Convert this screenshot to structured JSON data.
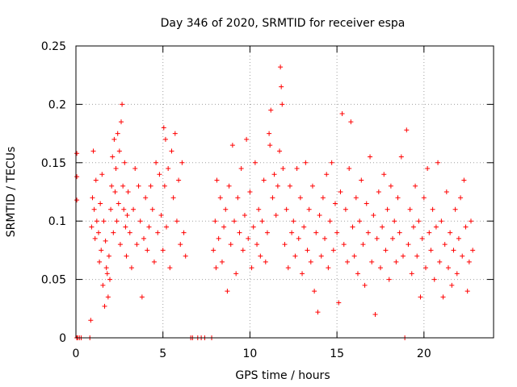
{
  "chart_data": {
    "type": "scatter",
    "title": "Day 346 of 2020, SRMTID for receiver espa",
    "xlabel": "GPS time / hours",
    "ylabel": "SRMTID / TECUs",
    "xlim": [
      0,
      24
    ],
    "ylim": [
      0,
      0.25
    ],
    "xticks": [
      0,
      5,
      10,
      15,
      20
    ],
    "xtick_labels": [
      "0",
      "5",
      "10",
      "15",
      "20"
    ],
    "yticks": [
      0,
      0.05,
      0.1,
      0.15,
      0.2,
      0.25
    ],
    "ytick_labels": [
      "0",
      "0.05",
      "0.1",
      "0.15",
      "0.2",
      "0.25"
    ],
    "grid": true,
    "marker": "+",
    "series": [
      {
        "name": "SRMTID",
        "color": "#ff0000",
        "points": [
          [
            0.05,
            0.158
          ],
          [
            0.05,
            0.138
          ],
          [
            0.05,
            0.118
          ],
          [
            0.05,
            0.0
          ],
          [
            0.1,
            0.0
          ],
          [
            0.2,
            0.0
          ],
          [
            0.3,
            0.0
          ],
          [
            0.8,
            0.0
          ],
          [
            0.85,
            0.015
          ],
          [
            0.9,
            0.095
          ],
          [
            0.95,
            0.12
          ],
          [
            1.0,
            0.16
          ],
          [
            1.05,
            0.11
          ],
          [
            1.1,
            0.085
          ],
          [
            1.15,
            0.135
          ],
          [
            1.2,
            0.1
          ],
          [
            1.3,
            0.09
          ],
          [
            1.35,
            0.065
          ],
          [
            1.4,
            0.115
          ],
          [
            1.45,
            0.075
          ],
          [
            1.5,
            0.14
          ],
          [
            1.55,
            0.045
          ],
          [
            1.6,
            0.1
          ],
          [
            1.65,
            0.027
          ],
          [
            1.7,
            0.083
          ],
          [
            1.75,
            0.06
          ],
          [
            1.8,
            0.055
          ],
          [
            1.85,
            0.035
          ],
          [
            1.9,
            0.07
          ],
          [
            1.95,
            0.05
          ],
          [
            2.0,
            0.11
          ],
          [
            2.05,
            0.13
          ],
          [
            2.1,
            0.155
          ],
          [
            2.15,
            0.09
          ],
          [
            2.2,
            0.17
          ],
          [
            2.25,
            0.125
          ],
          [
            2.3,
            0.145
          ],
          [
            2.35,
            0.1
          ],
          [
            2.4,
            0.175
          ],
          [
            2.45,
            0.115
          ],
          [
            2.5,
            0.16
          ],
          [
            2.55,
            0.08
          ],
          [
            2.6,
            0.185
          ],
          [
            2.65,
            0.2
          ],
          [
            2.7,
            0.13
          ],
          [
            2.75,
            0.11
          ],
          [
            2.8,
            0.15
          ],
          [
            2.85,
            0.095
          ],
          [
            2.9,
            0.07
          ],
          [
            2.95,
            0.105
          ],
          [
            3.0,
            0.125
          ],
          [
            3.1,
            0.09
          ],
          [
            3.2,
            0.06
          ],
          [
            3.3,
            0.11
          ],
          [
            3.4,
            0.145
          ],
          [
            3.5,
            0.08
          ],
          [
            3.6,
            0.13
          ],
          [
            3.7,
            0.1
          ],
          [
            3.8,
            0.035
          ],
          [
            3.9,
            0.085
          ],
          [
            4.0,
            0.12
          ],
          [
            4.1,
            0.075
          ],
          [
            4.2,
            0.095
          ],
          [
            4.3,
            0.13
          ],
          [
            4.4,
            0.11
          ],
          [
            4.5,
            0.065
          ],
          [
            4.6,
            0.15
          ],
          [
            4.7,
            0.09
          ],
          [
            4.8,
            0.14
          ],
          [
            4.9,
            0.105
          ],
          [
            5.0,
            0.075
          ],
          [
            5.05,
            0.18
          ],
          [
            5.1,
            0.13
          ],
          [
            5.15,
            0.17
          ],
          [
            5.2,
            0.095
          ],
          [
            5.3,
            0.145
          ],
          [
            5.4,
            0.06
          ],
          [
            5.5,
            0.16
          ],
          [
            5.6,
            0.12
          ],
          [
            5.7,
            0.175
          ],
          [
            5.8,
            0.1
          ],
          [
            5.9,
            0.135
          ],
          [
            6.0,
            0.08
          ],
          [
            6.1,
            0.15
          ],
          [
            6.2,
            0.09
          ],
          [
            6.3,
            0.07
          ],
          [
            6.6,
            0.0
          ],
          [
            6.7,
            0.0
          ],
          [
            7.0,
            0.0
          ],
          [
            7.2,
            0.0
          ],
          [
            7.4,
            0.0
          ],
          [
            7.8,
            0.0
          ],
          [
            7.9,
            0.075
          ],
          [
            8.0,
            0.1
          ],
          [
            8.05,
            0.06
          ],
          [
            8.1,
            0.135
          ],
          [
            8.2,
            0.085
          ],
          [
            8.3,
            0.12
          ],
          [
            8.4,
            0.065
          ],
          [
            8.5,
            0.095
          ],
          [
            8.6,
            0.11
          ],
          [
            8.7,
            0.04
          ],
          [
            8.8,
            0.13
          ],
          [
            8.9,
            0.08
          ],
          [
            9.0,
            0.165
          ],
          [
            9.1,
            0.1
          ],
          [
            9.2,
            0.055
          ],
          [
            9.3,
            0.12
          ],
          [
            9.4,
            0.09
          ],
          [
            9.5,
            0.145
          ],
          [
            9.6,
            0.075
          ],
          [
            9.7,
            0.105
          ],
          [
            9.8,
            0.17
          ],
          [
            9.9,
            0.085
          ],
          [
            10.0,
            0.125
          ],
          [
            10.1,
            0.06
          ],
          [
            10.2,
            0.095
          ],
          [
            10.3,
            0.15
          ],
          [
            10.4,
            0.08
          ],
          [
            10.5,
            0.11
          ],
          [
            10.6,
            0.07
          ],
          [
            10.7,
            0.1
          ],
          [
            10.8,
            0.135
          ],
          [
            10.9,
            0.065
          ],
          [
            11.0,
            0.09
          ],
          [
            11.1,
            0.175
          ],
          [
            11.15,
            0.165
          ],
          [
            11.2,
            0.195
          ],
          [
            11.3,
            0.12
          ],
          [
            11.4,
            0.14
          ],
          [
            11.5,
            0.105
          ],
          [
            11.6,
            0.13
          ],
          [
            11.7,
            0.16
          ],
          [
            11.75,
            0.232
          ],
          [
            11.8,
            0.215
          ],
          [
            11.85,
            0.2
          ],
          [
            11.9,
            0.145
          ],
          [
            12.0,
            0.08
          ],
          [
            12.1,
            0.11
          ],
          [
            12.2,
            0.06
          ],
          [
            12.3,
            0.13
          ],
          [
            12.4,
            0.09
          ],
          [
            12.5,
            0.1
          ],
          [
            12.6,
            0.07
          ],
          [
            12.7,
            0.145
          ],
          [
            12.8,
            0.085
          ],
          [
            12.9,
            0.12
          ],
          [
            13.0,
            0.055
          ],
          [
            13.1,
            0.095
          ],
          [
            13.2,
            0.15
          ],
          [
            13.3,
            0.075
          ],
          [
            13.4,
            0.11
          ],
          [
            13.5,
            0.065
          ],
          [
            13.6,
            0.13
          ],
          [
            13.7,
            0.04
          ],
          [
            13.8,
            0.09
          ],
          [
            13.9,
            0.022
          ],
          [
            14.0,
            0.105
          ],
          [
            14.1,
            0.07
          ],
          [
            14.2,
            0.12
          ],
          [
            14.3,
            0.085
          ],
          [
            14.4,
            0.14
          ],
          [
            14.5,
            0.06
          ],
          [
            14.6,
            0.1
          ],
          [
            14.7,
            0.15
          ],
          [
            14.8,
            0.075
          ],
          [
            14.9,
            0.115
          ],
          [
            15.0,
            0.09
          ],
          [
            15.1,
            0.03
          ],
          [
            15.2,
            0.125
          ],
          [
            15.3,
            0.192
          ],
          [
            15.4,
            0.08
          ],
          [
            15.5,
            0.11
          ],
          [
            15.6,
            0.065
          ],
          [
            15.7,
            0.145
          ],
          [
            15.8,
            0.185
          ],
          [
            15.9,
            0.095
          ],
          [
            16.0,
            0.07
          ],
          [
            16.1,
            0.12
          ],
          [
            16.2,
            0.055
          ],
          [
            16.3,
            0.1
          ],
          [
            16.4,
            0.135
          ],
          [
            16.5,
            0.08
          ],
          [
            16.6,
            0.045
          ],
          [
            16.7,
            0.115
          ],
          [
            16.8,
            0.09
          ],
          [
            16.9,
            0.155
          ],
          [
            17.0,
            0.065
          ],
          [
            17.1,
            0.105
          ],
          [
            17.2,
            0.02
          ],
          [
            17.3,
            0.085
          ],
          [
            17.4,
            0.125
          ],
          [
            17.5,
            0.06
          ],
          [
            17.6,
            0.095
          ],
          [
            17.7,
            0.14
          ],
          [
            17.8,
            0.075
          ],
          [
            17.9,
            0.11
          ],
          [
            18.0,
            0.05
          ],
          [
            18.1,
            0.13
          ],
          [
            18.2,
            0.085
          ],
          [
            18.3,
            0.1
          ],
          [
            18.4,
            0.065
          ],
          [
            18.5,
            0.12
          ],
          [
            18.6,
            0.09
          ],
          [
            18.7,
            0.155
          ],
          [
            18.8,
            0.07
          ],
          [
            18.9,
            0.0
          ],
          [
            19.0,
            0.178
          ],
          [
            19.1,
            0.08
          ],
          [
            19.2,
            0.11
          ],
          [
            19.3,
            0.055
          ],
          [
            19.4,
            0.095
          ],
          [
            19.5,
            0.13
          ],
          [
            19.6,
            0.07
          ],
          [
            19.7,
            0.1
          ],
          [
            19.8,
            0.035
          ],
          [
            19.9,
            0.085
          ],
          [
            20.0,
            0.12
          ],
          [
            20.1,
            0.06
          ],
          [
            20.2,
            0.145
          ],
          [
            20.3,
            0.09
          ],
          [
            20.4,
            0.075
          ],
          [
            20.5,
            0.11
          ],
          [
            20.6,
            0.05
          ],
          [
            20.7,
            0.095
          ],
          [
            20.8,
            0.15
          ],
          [
            20.9,
            0.065
          ],
          [
            21.0,
            0.1
          ],
          [
            21.1,
            0.035
          ],
          [
            21.2,
            0.08
          ],
          [
            21.3,
            0.125
          ],
          [
            21.4,
            0.06
          ],
          [
            21.5,
            0.09
          ],
          [
            21.6,
            0.045
          ],
          [
            21.7,
            0.075
          ],
          [
            21.8,
            0.11
          ],
          [
            21.9,
            0.055
          ],
          [
            22.0,
            0.085
          ],
          [
            22.1,
            0.12
          ],
          [
            22.2,
            0.07
          ],
          [
            22.3,
            0.135
          ],
          [
            22.4,
            0.095
          ],
          [
            22.5,
            0.04
          ],
          [
            22.6,
            0.065
          ],
          [
            22.7,
            0.1
          ],
          [
            22.8,
            0.075
          ]
        ]
      }
    ]
  }
}
